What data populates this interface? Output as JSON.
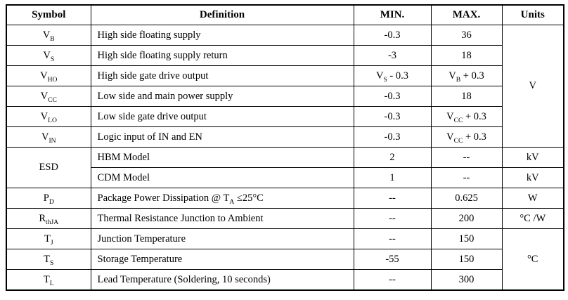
{
  "page": {
    "background_color": "#ffffff",
    "border_color": "#000000",
    "text_color": "#000000"
  },
  "table": {
    "header": [
      "Symbol",
      "Definition",
      "MIN.",
      "MAX.",
      "Units"
    ],
    "rows": [
      {
        "cells": [
          {
            "name": "symbol",
            "segs": [
              {
                "t": "V"
              },
              {
                "t": "B",
                "s": true
              }
            ]
          },
          {
            "name": "definition",
            "segs": [
              {
                "t": "High side floating supply"
              }
            ]
          },
          {
            "name": "min",
            "segs": [
              {
                "t": "-0.3"
              }
            ]
          },
          {
            "name": "max",
            "segs": [
              {
                "t": "36"
              }
            ]
          },
          {
            "name": "units",
            "rowspan": 6,
            "segs": [
              {
                "t": "V"
              }
            ]
          }
        ]
      },
      {
        "cells": [
          {
            "name": "symbol",
            "segs": [
              {
                "t": "V"
              },
              {
                "t": "S",
                "s": true
              }
            ]
          },
          {
            "name": "definition",
            "segs": [
              {
                "t": "High side floating supply return"
              }
            ]
          },
          {
            "name": "min",
            "segs": [
              {
                "t": "-3"
              }
            ]
          },
          {
            "name": "max",
            "segs": [
              {
                "t": "18"
              }
            ]
          }
        ]
      },
      {
        "cells": [
          {
            "name": "symbol",
            "segs": [
              {
                "t": "V"
              },
              {
                "t": "HO",
                "s": true
              }
            ]
          },
          {
            "name": "definition",
            "segs": [
              {
                "t": "High side gate drive output"
              }
            ]
          },
          {
            "name": "min",
            "segs": [
              {
                "t": "V"
              },
              {
                "t": "S",
                "s": true
              },
              {
                "t": " - 0.3"
              }
            ]
          },
          {
            "name": "max",
            "segs": [
              {
                "t": "V"
              },
              {
                "t": "B",
                "s": true
              },
              {
                "t": " + 0.3"
              }
            ]
          }
        ]
      },
      {
        "cells": [
          {
            "name": "symbol",
            "segs": [
              {
                "t": "V"
              },
              {
                "t": "CC",
                "s": true
              }
            ]
          },
          {
            "name": "definition",
            "segs": [
              {
                "t": "Low side and main power supply"
              }
            ]
          },
          {
            "name": "min",
            "segs": [
              {
                "t": "-0.3"
              }
            ]
          },
          {
            "name": "max",
            "segs": [
              {
                "t": "18"
              }
            ]
          }
        ]
      },
      {
        "cells": [
          {
            "name": "symbol",
            "segs": [
              {
                "t": "V"
              },
              {
                "t": "LO",
                "s": true
              }
            ]
          },
          {
            "name": "definition",
            "segs": [
              {
                "t": "Low side gate drive output"
              }
            ]
          },
          {
            "name": "min",
            "segs": [
              {
                "t": "-0.3"
              }
            ]
          },
          {
            "name": "max",
            "segs": [
              {
                "t": "V"
              },
              {
                "t": "CC",
                "s": true
              },
              {
                "t": " + 0.3"
              }
            ]
          }
        ]
      },
      {
        "cells": [
          {
            "name": "symbol",
            "segs": [
              {
                "t": "V"
              },
              {
                "t": "IN",
                "s": true
              }
            ]
          },
          {
            "name": "definition",
            "segs": [
              {
                "t": "Logic input of IN and EN"
              }
            ]
          },
          {
            "name": "min",
            "segs": [
              {
                "t": "-0.3"
              }
            ]
          },
          {
            "name": "max",
            "segs": [
              {
                "t": "V"
              },
              {
                "t": "CC",
                "s": true
              },
              {
                "t": " + 0.3"
              }
            ]
          }
        ]
      },
      {
        "cells": [
          {
            "name": "symbol",
            "rowspan": 2,
            "segs": [
              {
                "t": "ESD"
              }
            ]
          },
          {
            "name": "definition",
            "segs": [
              {
                "t": "HBM Model"
              }
            ]
          },
          {
            "name": "min",
            "segs": [
              {
                "t": "2"
              }
            ]
          },
          {
            "name": "max",
            "segs": [
              {
                "t": "--"
              }
            ]
          },
          {
            "name": "units",
            "segs": [
              {
                "t": "kV"
              }
            ]
          }
        ]
      },
      {
        "cells": [
          {
            "name": "definition",
            "segs": [
              {
                "t": "CDM Model"
              }
            ]
          },
          {
            "name": "min",
            "segs": [
              {
                "t": "1"
              }
            ]
          },
          {
            "name": "max",
            "segs": [
              {
                "t": "--"
              }
            ]
          },
          {
            "name": "units",
            "segs": [
              {
                "t": "kV"
              }
            ]
          }
        ]
      },
      {
        "cells": [
          {
            "name": "symbol",
            "segs": [
              {
                "t": "P"
              },
              {
                "t": "D",
                "s": true
              }
            ]
          },
          {
            "name": "definition",
            "segs": [
              {
                "t": "Package Power Dissipation @ T"
              },
              {
                "t": "A",
                "s": true
              },
              {
                "t": " ≤25°C"
              }
            ]
          },
          {
            "name": "min",
            "segs": [
              {
                "t": "--"
              }
            ]
          },
          {
            "name": "max",
            "segs": [
              {
                "t": "0.625"
              }
            ]
          },
          {
            "name": "units",
            "segs": [
              {
                "t": "W"
              }
            ]
          }
        ]
      },
      {
        "cells": [
          {
            "name": "symbol",
            "segs": [
              {
                "t": "R"
              },
              {
                "t": "thJA",
                "s": true
              }
            ]
          },
          {
            "name": "definition",
            "segs": [
              {
                "t": "Thermal Resistance Junction to Ambient"
              }
            ]
          },
          {
            "name": "min",
            "segs": [
              {
                "t": "--"
              }
            ]
          },
          {
            "name": "max",
            "segs": [
              {
                "t": "200"
              }
            ]
          },
          {
            "name": "units",
            "segs": [
              {
                "t": "°C /W"
              }
            ]
          }
        ]
      },
      {
        "cells": [
          {
            "name": "symbol",
            "segs": [
              {
                "t": "T"
              },
              {
                "t": "J",
                "s": true
              }
            ]
          },
          {
            "name": "definition",
            "segs": [
              {
                "t": "Junction Temperature"
              }
            ]
          },
          {
            "name": "min",
            "segs": [
              {
                "t": "--"
              }
            ]
          },
          {
            "name": "max",
            "segs": [
              {
                "t": "150"
              }
            ]
          },
          {
            "name": "units",
            "rowspan": 3,
            "segs": [
              {
                "t": "°C"
              }
            ]
          }
        ]
      },
      {
        "cells": [
          {
            "name": "symbol",
            "segs": [
              {
                "t": "T"
              },
              {
                "t": "S",
                "s": true
              }
            ]
          },
          {
            "name": "definition",
            "segs": [
              {
                "t": "Storage Temperature"
              }
            ]
          },
          {
            "name": "min",
            "segs": [
              {
                "t": "-55"
              }
            ]
          },
          {
            "name": "max",
            "segs": [
              {
                "t": "150"
              }
            ]
          }
        ]
      },
      {
        "cells": [
          {
            "name": "symbol",
            "segs": [
              {
                "t": "T"
              },
              {
                "t": "L",
                "s": true
              }
            ]
          },
          {
            "name": "definition",
            "segs": [
              {
                "t": "Lead Temperature (Soldering, 10 seconds)"
              }
            ]
          },
          {
            "name": "min",
            "segs": [
              {
                "t": "--"
              }
            ]
          },
          {
            "name": "max",
            "segs": [
              {
                "t": "300"
              }
            ]
          }
        ]
      }
    ]
  }
}
